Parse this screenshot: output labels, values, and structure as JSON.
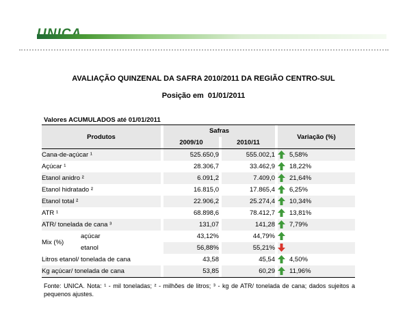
{
  "header": {
    "logo_text": "UNICA",
    "title": "AVALIAÇÃO QUINZENAL DA SAFRA 2010/2011 DA REGIÃO CENTRO-SUL",
    "position_label": "Posição em",
    "position_date": "01/01/2011"
  },
  "table": {
    "subtitle": "Valores ACUMULADOS até 01/01/2011",
    "columns": {
      "product": "Produtos",
      "safras": "Safras",
      "year1": "2009/10",
      "year2": "2010/11",
      "variation": "Variação (%)"
    },
    "rows": [
      {
        "label": "Cana-de-açúcar ¹",
        "v1": "525.650,9",
        "v2": "555.002,1",
        "var": "5,58%",
        "trend": "up"
      },
      {
        "label": "Açúcar ¹",
        "v1": "28.306,7",
        "v2": "33.462,9",
        "var": "18,22%",
        "trend": "up"
      },
      {
        "label": "Etanol anidro ²",
        "v1": "6.091,2",
        "v2": "7.409,0",
        "var": "21,64%",
        "trend": "up"
      },
      {
        "label": "Etanol hidratado ²",
        "v1": "16.815,0",
        "v2": "17.865,4",
        "var": "6,25%",
        "trend": "up"
      },
      {
        "label": "Etanol total ²",
        "v1": "22.906,2",
        "v2": "25.274,4",
        "var": "10,34%",
        "trend": "up"
      },
      {
        "label": "ATR ¹",
        "v1": "68.898,6",
        "v2": "78.412,7",
        "var": "13,81%",
        "trend": "up"
      },
      {
        "label": "ATR/ tonelada de cana ³",
        "v1": "131,07",
        "v2": "141,28",
        "var": "7,79%",
        "trend": "up"
      }
    ],
    "mix": {
      "label": "Mix (%)",
      "rows": [
        {
          "label": "açúcar",
          "v1": "43,12%",
          "v2": "44,79%",
          "trend": "up"
        },
        {
          "label": "etanol",
          "v1": "56,88%",
          "v2": "55,21%",
          "trend": "down"
        }
      ]
    },
    "rows_after": [
      {
        "label": "Litros etanol/ tonelada de cana",
        "v1": "43,58",
        "v2": "45,54",
        "var": "4,50%",
        "trend": "up"
      },
      {
        "label": "Kg açúcar/ tonelada de cana",
        "v1": "53,85",
        "v2": "60,29",
        "var": "11,96%",
        "trend": "up"
      }
    ]
  },
  "footnote": "Fonte: UNICA. Nota: ¹ - mil toneladas; ² - milhões de litros; ³ - kg de ATR/ tonelada de cana; dados sujeitos a pequenos ajustes.",
  "colors": {
    "up_arrow": "#3f9a3a",
    "down_arrow": "#d9342b",
    "header_bg": "#e6e6e6",
    "row_shade": "#efefef"
  }
}
